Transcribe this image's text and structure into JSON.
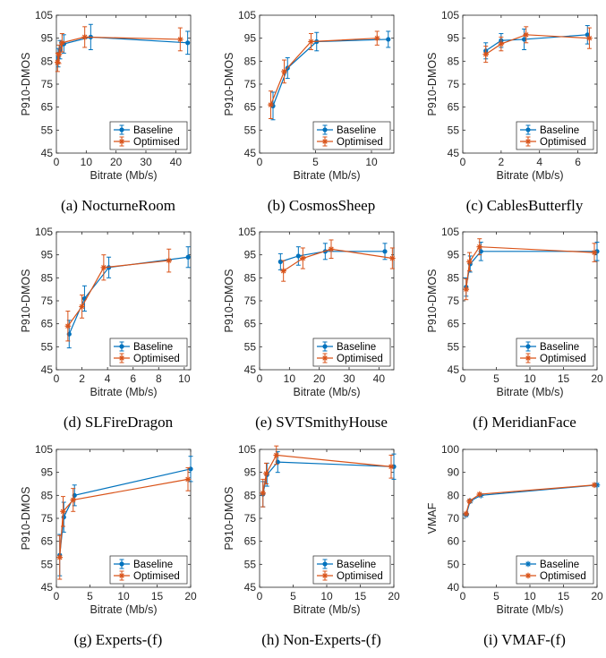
{
  "figure": {
    "colors": {
      "baseline": "#0072BD",
      "optimised": "#D95319",
      "axis": "#262626"
    }
  },
  "chart_data": [
    {
      "type": "line",
      "caption": "(a) NocturneRoom",
      "xlabel": "Bitrate (Mb/s)",
      "ylabel": "P910-DMOS",
      "xlim": [
        0,
        45
      ],
      "ylim": [
        45,
        105
      ],
      "xticks": [
        "0",
        "10",
        "20",
        "30",
        "40"
      ],
      "xtick_values": [
        0,
        10,
        20,
        30,
        40
      ],
      "yticks": [
        "45",
        "55",
        "65",
        "75",
        "85",
        "95",
        "105"
      ],
      "ytick_values": [
        45,
        55,
        65,
        75,
        85,
        95,
        105
      ],
      "legend": "bottom-right",
      "series": [
        {
          "name": "Baseline",
          "marker": "dot",
          "x": [
            0.6,
            1.2,
            2.5,
            11.5,
            44.0
          ],
          "y": [
            86.5,
            90.0,
            92.5,
            95.5,
            93.0
          ],
          "err": [
            4.0,
            4.0,
            4.0,
            5.5,
            5.0
          ]
        },
        {
          "name": "Optimised",
          "marker": "star",
          "x": [
            0.4,
            0.9,
            1.9,
            9.5,
            41.5
          ],
          "y": [
            84.5,
            88.0,
            93.0,
            95.5,
            94.5
          ],
          "err": [
            4.0,
            4.0,
            4.0,
            4.5,
            5.0
          ]
        }
      ]
    },
    {
      "type": "line",
      "caption": "(b) CosmosSheep",
      "xlabel": "Bitrate (Mb/s)",
      "ylabel": "P910-DMOS",
      "xlim": [
        0,
        12
      ],
      "ylim": [
        45,
        105
      ],
      "xticks": [
        "0",
        "5",
        "10"
      ],
      "xtick_values": [
        0,
        5,
        10
      ],
      "yticks": [
        "45",
        "55",
        "65",
        "75",
        "85",
        "95",
        "105"
      ],
      "ytick_values": [
        45,
        55,
        65,
        75,
        85,
        95,
        105
      ],
      "legend": "bottom-right",
      "series": [
        {
          "name": "Baseline",
          "marker": "dot",
          "x": [
            1.2,
            2.5,
            5.1,
            11.5
          ],
          "y": [
            65.5,
            82.0,
            93.5,
            94.5
          ],
          "err": [
            6.0,
            4.5,
            4.0,
            3.5
          ]
        },
        {
          "name": "Optimised",
          "marker": "star",
          "x": [
            1.0,
            2.2,
            4.6,
            10.5
          ],
          "y": [
            66.0,
            80.5,
            93.5,
            95.0
          ],
          "err": [
            6.0,
            5.0,
            3.5,
            3.0
          ]
        }
      ]
    },
    {
      "type": "line",
      "caption": "(c) CablesButterfly",
      "xlabel": "Bitrate (Mb/s)",
      "ylabel": "P910-DMOS",
      "xlim": [
        0,
        7
      ],
      "ylim": [
        45,
        105
      ],
      "xticks": [
        "0",
        "2",
        "4",
        "6"
      ],
      "xtick_values": [
        0,
        2,
        4,
        6
      ],
      "yticks": [
        "45",
        "55",
        "65",
        "75",
        "85",
        "95",
        "105"
      ],
      "ytick_values": [
        45,
        55,
        65,
        75,
        85,
        95,
        105
      ],
      "legend": "bottom-right",
      "series": [
        {
          "name": "Baseline",
          "marker": "dot",
          "x": [
            1.2,
            2.0,
            3.2,
            6.5
          ],
          "y": [
            89.5,
            94.0,
            94.5,
            96.5
          ],
          "err": [
            3.5,
            3.0,
            4.5,
            4.0
          ]
        },
        {
          "name": "Optimised",
          "marker": "star",
          "x": [
            1.2,
            2.0,
            3.3,
            6.6
          ],
          "y": [
            88.0,
            92.5,
            96.5,
            95.0
          ],
          "err": [
            3.5,
            3.0,
            3.5,
            4.5
          ]
        }
      ]
    },
    {
      "type": "line",
      "caption": "(d) SLFireDragon",
      "xlabel": "Bitrate (Mb/s)",
      "ylabel": "P910-DMOS",
      "xlim": [
        0,
        10.5
      ],
      "ylim": [
        45,
        105
      ],
      "xticks": [
        "0",
        "2",
        "4",
        "6",
        "8",
        "10"
      ],
      "xtick_values": [
        0,
        2,
        4,
        6,
        8,
        10
      ],
      "yticks": [
        "45",
        "55",
        "65",
        "75",
        "85",
        "95",
        "105"
      ],
      "ytick_values": [
        45,
        55,
        65,
        75,
        85,
        95,
        105
      ],
      "legend": "bottom-right",
      "series": [
        {
          "name": "Baseline",
          "marker": "dot",
          "x": [
            1.0,
            2.2,
            4.1,
            10.3
          ],
          "y": [
            60.5,
            76.0,
            89.5,
            94.0
          ],
          "err": [
            6.0,
            5.5,
            4.5,
            4.5
          ]
        },
        {
          "name": "Optimised",
          "marker": "star",
          "x": [
            0.9,
            2.0,
            3.7,
            8.8
          ],
          "y": [
            64.0,
            72.5,
            89.5,
            92.5
          ],
          "err": [
            6.5,
            5.0,
            5.5,
            5.0
          ]
        }
      ]
    },
    {
      "type": "line",
      "caption": "(e) SVTSmithyHouse",
      "xlabel": "Bitrate (Mb/s)",
      "ylabel": "P910-DMOS",
      "xlim": [
        0,
        45
      ],
      "ylim": [
        45,
        105
      ],
      "xticks": [
        "0",
        "10",
        "20",
        "30",
        "40"
      ],
      "xtick_values": [
        0,
        10,
        20,
        30,
        40
      ],
      "yticks": [
        "45",
        "55",
        "65",
        "75",
        "85",
        "95",
        "105"
      ],
      "ytick_values": [
        45,
        55,
        65,
        75,
        85,
        95,
        105
      ],
      "legend": "bottom-right",
      "series": [
        {
          "name": "Baseline",
          "marker": "dot",
          "x": [
            7.0,
            13.0,
            22.0,
            42.0
          ],
          "y": [
            92.0,
            94.5,
            96.5,
            96.5
          ],
          "err": [
            3.5,
            4.0,
            3.5,
            3.5
          ]
        },
        {
          "name": "Optimised",
          "marker": "star",
          "x": [
            8.0,
            14.5,
            24.0,
            44.5
          ],
          "y": [
            88.0,
            93.5,
            97.5,
            93.5
          ],
          "err": [
            4.5,
            4.5,
            4.0,
            4.5
          ]
        }
      ]
    },
    {
      "type": "line",
      "caption": "(f) MeridianFace",
      "xlabel": "Bitrate (Mb/s)",
      "ylabel": "P910-DMOS",
      "xlim": [
        0,
        20
      ],
      "ylim": [
        45,
        105
      ],
      "xticks": [
        "0",
        "5",
        "10",
        "15",
        "20"
      ],
      "xtick_values": [
        0,
        5,
        10,
        15,
        20
      ],
      "yticks": [
        "45",
        "55",
        "65",
        "75",
        "85",
        "95",
        "105"
      ],
      "ytick_values": [
        45,
        55,
        65,
        75,
        85,
        95,
        105
      ],
      "legend": "bottom-right",
      "series": [
        {
          "name": "Baseline",
          "marker": "dot",
          "x": [
            0.5,
            1.1,
            2.7,
            20.0
          ],
          "y": [
            81.0,
            91.0,
            96.5,
            96.5
          ],
          "err": [
            4.0,
            3.5,
            4.0,
            4.0
          ]
        },
        {
          "name": "Optimised",
          "marker": "star",
          "x": [
            0.5,
            1.0,
            2.5,
            19.6
          ],
          "y": [
            80.0,
            92.0,
            98.5,
            96.0
          ],
          "err": [
            4.5,
            4.0,
            3.5,
            4.0
          ]
        }
      ]
    },
    {
      "type": "line",
      "caption": "(g) Experts-(f)",
      "xlabel": "Bitrate (Mb/s)",
      "ylabel": "P910-DMOS",
      "xlim": [
        0,
        20
      ],
      "ylim": [
        45,
        105
      ],
      "xticks": [
        "0",
        "5",
        "10",
        "15",
        "20"
      ],
      "xtick_values": [
        0,
        5,
        10,
        15,
        20
      ],
      "yticks": [
        "45",
        "55",
        "65",
        "75",
        "85",
        "95",
        "105"
      ],
      "ytick_values": [
        45,
        55,
        65,
        75,
        85,
        95,
        105
      ],
      "legend": "bottom-right",
      "series": [
        {
          "name": "Baseline",
          "marker": "dot",
          "x": [
            0.5,
            1.1,
            2.7,
            20.0
          ],
          "y": [
            59.0,
            75.5,
            85.0,
            96.5
          ],
          "err": [
            9.0,
            6.5,
            4.5,
            5.5
          ]
        },
        {
          "name": "Optimised",
          "marker": "star",
          "x": [
            0.5,
            1.0,
            2.5,
            19.6
          ],
          "y": [
            58.0,
            78.0,
            83.0,
            92.0
          ],
          "err": [
            9.5,
            6.5,
            5.0,
            5.0
          ]
        }
      ]
    },
    {
      "type": "line",
      "caption": "(h) Non-Experts-(f)",
      "xlabel": "Bitrate (Mb/s)",
      "ylabel": "P910-DMOS",
      "xlim": [
        0,
        20
      ],
      "ylim": [
        45,
        105
      ],
      "xticks": [
        "0",
        "5",
        "10",
        "15",
        "20"
      ],
      "xtick_values": [
        0,
        5,
        10,
        15,
        20
      ],
      "yticks": [
        "45",
        "55",
        "65",
        "75",
        "85",
        "95",
        "105"
      ],
      "ytick_values": [
        45,
        55,
        65,
        75,
        85,
        95,
        105
      ],
      "legend": "bottom-right",
      "series": [
        {
          "name": "Baseline",
          "marker": "dot",
          "x": [
            0.5,
            1.1,
            2.7,
            20.0
          ],
          "y": [
            85.5,
            94.0,
            99.5,
            97.5
          ],
          "err": [
            5.5,
            5.0,
            4.5,
            5.5
          ]
        },
        {
          "name": "Optimised",
          "marker": "star",
          "x": [
            0.5,
            1.0,
            2.5,
            19.6
          ],
          "y": [
            86.0,
            94.5,
            102.5,
            97.5
          ],
          "err": [
            6.0,
            4.5,
            4.0,
            5.0
          ]
        }
      ]
    },
    {
      "type": "line",
      "caption": "(i) VMAF-(f)",
      "xlabel": "Bitrate (Mb/s)",
      "ylabel": "VMAF",
      "xlim": [
        0,
        20
      ],
      "ylim": [
        40,
        100
      ],
      "xticks": [
        "0",
        "5",
        "10",
        "15",
        "20"
      ],
      "xtick_values": [
        0,
        5,
        10,
        15,
        20
      ],
      "yticks": [
        "40",
        "50",
        "60",
        "70",
        "80",
        "90",
        "100"
      ],
      "ytick_values": [
        40,
        50,
        60,
        70,
        80,
        90,
        100
      ],
      "legend": "bottom-right",
      "series": [
        {
          "name": "Baseline",
          "marker": "star",
          "x": [
            0.5,
            1.1,
            2.7,
            20.0
          ],
          "y": [
            71.5,
            77.5,
            80.0,
            84.5
          ],
          "err": []
        },
        {
          "name": "Optimised",
          "marker": "star",
          "x": [
            0.5,
            1.0,
            2.5,
            19.6
          ],
          "y": [
            72.0,
            77.5,
            80.5,
            84.5
          ],
          "err": []
        }
      ]
    }
  ]
}
